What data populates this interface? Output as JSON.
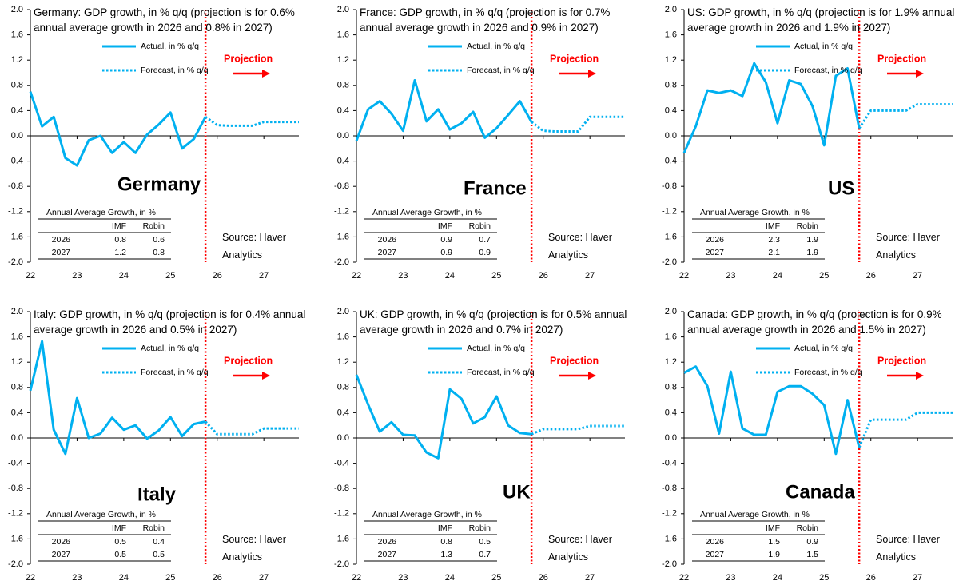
{
  "chart_data": [
    {
      "type": "line",
      "title": "Germany: GDP growth, in % q/q (projection is for 0.6% annual average growth in 2026 and 0.8% in 2027)",
      "label": "Germany",
      "x": [
        22,
        22.25,
        22.5,
        22.75,
        23,
        23.25,
        23.5,
        23.75,
        24,
        24.25,
        24.5,
        24.75,
        25,
        25.25,
        25.5,
        25.75,
        26,
        26.25,
        26.5,
        26.75,
        27,
        27.25,
        27.5,
        27.75
      ],
      "series": [
        {
          "name": "Actual, in % q/q",
          "color": "#00b0f0",
          "style": "solid",
          "values": [
            0.7,
            0.15,
            0.3,
            -0.35,
            -0.47,
            -0.07,
            0.0,
            -0.27,
            -0.1,
            -0.27,
            0.02,
            0.18,
            0.37,
            -0.2,
            -0.05,
            0.3,
            null,
            null,
            null,
            null,
            null,
            null,
            null,
            null
          ]
        },
        {
          "name": "Forecast, in % q/q",
          "color": "#00b0f0",
          "style": "dotted",
          "values": [
            null,
            null,
            null,
            null,
            null,
            null,
            null,
            null,
            null,
            null,
            null,
            null,
            null,
            null,
            null,
            0.3,
            0.17,
            0.16,
            0.16,
            0.16,
            0.22,
            0.22,
            0.22,
            0.22
          ]
        }
      ],
      "xlim": [
        22,
        27.75
      ],
      "xticks": [
        22,
        23,
        24,
        25,
        26,
        27
      ],
      "ylim": [
        -2,
        2
      ],
      "yticks": [
        {
          "value": 2,
          "label": "2.0"
        },
        1.6,
        1.2,
        0.8,
        0.4,
        {
          "value": 0,
          "label": "0.0"
        },
        -0.4,
        -0.8,
        -1.2,
        -1.6,
        {
          "value": -2,
          "label": "-2.0"
        }
      ],
      "annotation": "Projection",
      "annotation_color": "#ff0000",
      "table": {
        "title": "Annual Average Growth, in %",
        "columns": [
          "IMF",
          "Robin"
        ],
        "rows": [
          {
            "label": "2026",
            "values": [
              0.8,
              0.6
            ]
          },
          {
            "label": "2027",
            "values": [
              1.2,
              0.8
            ]
          }
        ]
      },
      "source": "Source: Haver Analytics"
    },
    {
      "type": "line",
      "title": "France: GDP growth, in % q/q (projection is for 0.7% annual average growth in 2026 and 0.9% in 2027)",
      "label": "France",
      "x": [
        22,
        22.25,
        22.5,
        22.75,
        23,
        23.25,
        23.5,
        23.75,
        24,
        24.25,
        24.5,
        24.75,
        25,
        25.25,
        25.5,
        25.75,
        26,
        26.25,
        26.5,
        26.75,
        27,
        27.25,
        27.5,
        27.75
      ],
      "series": [
        {
          "name": "Actual, in % q/q",
          "color": "#00b0f0",
          "style": "solid",
          "values": [
            -0.08,
            0.42,
            0.55,
            0.35,
            0.08,
            0.88,
            0.23,
            0.42,
            0.1,
            0.2,
            0.38,
            -0.03,
            0.12,
            0.33,
            0.55,
            0.22,
            null,
            null,
            null,
            null,
            null,
            null,
            null,
            null
          ]
        },
        {
          "name": "Forecast, in % q/q",
          "color": "#00b0f0",
          "style": "dotted",
          "values": [
            null,
            null,
            null,
            null,
            null,
            null,
            null,
            null,
            null,
            null,
            null,
            null,
            null,
            null,
            null,
            0.22,
            0.08,
            0.07,
            0.07,
            0.07,
            0.3,
            0.3,
            0.3,
            0.3
          ]
        }
      ],
      "xlim": [
        22,
        27.75
      ],
      "xticks": [
        22,
        23,
        24,
        25,
        26,
        27
      ],
      "ylim": [
        -2,
        2
      ],
      "yticks": [
        {
          "value": 2,
          "label": "2.0"
        },
        1.6,
        1.2,
        0.8,
        0.4,
        {
          "value": 0,
          "label": "0.0"
        },
        -0.4,
        -0.8,
        -1.2,
        -1.6,
        {
          "value": -2,
          "label": "-2.0"
        }
      ],
      "annotation": "Projection",
      "annotation_color": "#ff0000",
      "table": {
        "title": "Annual Average Growth, in %",
        "columns": [
          "IMF",
          "Robin"
        ],
        "rows": [
          {
            "label": "2026",
            "values": [
              0.9,
              0.7
            ]
          },
          {
            "label": "2027",
            "values": [
              0.9,
              0.9
            ]
          }
        ]
      },
      "source": "Source: Haver Analytics"
    },
    {
      "type": "line",
      "title": "US: GDP growth, in % q/q (projection is for 1.9% annual average growth in 2026 and 1.9% in 2027)",
      "label": "US",
      "x": [
        22,
        22.25,
        22.5,
        22.75,
        23,
        23.25,
        23.5,
        23.75,
        24,
        24.25,
        24.5,
        24.75,
        25,
        25.25,
        25.5,
        25.75,
        26,
        26.25,
        26.5,
        26.75,
        27,
        27.25,
        27.5,
        27.75
      ],
      "series": [
        {
          "name": "Actual, in % q/q",
          "color": "#00b0f0",
          "style": "solid",
          "values": [
            -0.27,
            0.15,
            0.72,
            0.68,
            0.72,
            0.63,
            1.15,
            0.85,
            0.2,
            0.88,
            0.82,
            0.47,
            -0.15,
            0.95,
            1.07,
            0.12,
            null,
            null,
            null,
            null,
            null,
            null,
            null,
            null
          ]
        },
        {
          "name": "Forecast, in % q/q",
          "color": "#00b0f0",
          "style": "dotted",
          "values": [
            null,
            null,
            null,
            null,
            null,
            null,
            null,
            null,
            null,
            null,
            null,
            null,
            null,
            null,
            null,
            0.12,
            0.4,
            0.4,
            0.4,
            0.4,
            0.5,
            0.5,
            0.5,
            0.5
          ]
        }
      ],
      "xlim": [
        22,
        27.75
      ],
      "xticks": [
        22,
        23,
        24,
        25,
        26,
        27
      ],
      "ylim": [
        -2,
        2
      ],
      "yticks": [
        {
          "value": 2,
          "label": "2.0"
        },
        1.6,
        1.2,
        0.8,
        0.4,
        {
          "value": 0,
          "label": "0.0"
        },
        -0.4,
        -0.8,
        -1.2,
        -1.6,
        {
          "value": -2,
          "label": "-2.0"
        }
      ],
      "annotation": "Projection",
      "annotation_color": "#ff0000",
      "table": {
        "title": "Annual Average Growth, in %",
        "columns": [
          "IMF",
          "Robin"
        ],
        "rows": [
          {
            "label": "2026",
            "values": [
              2.3,
              1.9
            ]
          },
          {
            "label": "2027",
            "values": [
              2.1,
              1.9
            ]
          }
        ]
      },
      "source": "Source: Haver Analytics"
    },
    {
      "type": "line",
      "title": "Italy: GDP growth, in % q/q (projection is for 0.4% annual average growth in 2026 and 0.5% in 2027)",
      "label": "Italy",
      "x": [
        22,
        22.25,
        22.5,
        22.75,
        23,
        23.25,
        23.5,
        23.75,
        24,
        24.25,
        24.5,
        24.75,
        25,
        25.25,
        25.5,
        25.75,
        26,
        26.25,
        26.5,
        26.75,
        27,
        27.25,
        27.5,
        27.75
      ],
      "series": [
        {
          "name": "Actual, in % q/q",
          "color": "#00b0f0",
          "style": "solid",
          "values": [
            0.75,
            1.53,
            0.13,
            -0.25,
            0.63,
            0.0,
            0.07,
            0.32,
            0.13,
            0.2,
            -0.01,
            0.12,
            0.33,
            0.03,
            0.22,
            0.26,
            null,
            null,
            null,
            null,
            null,
            null,
            null,
            null
          ]
        },
        {
          "name": "Forecast, in % q/q",
          "color": "#00b0f0",
          "style": "dotted",
          "values": [
            null,
            null,
            null,
            null,
            null,
            null,
            null,
            null,
            null,
            null,
            null,
            null,
            null,
            null,
            null,
            0.26,
            0.06,
            0.06,
            0.06,
            0.06,
            0.15,
            0.15,
            0.15,
            0.15
          ]
        }
      ],
      "xlim": [
        22,
        27.75
      ],
      "xticks": [
        22,
        23,
        24,
        25,
        26,
        27
      ],
      "ylim": [
        -2,
        2
      ],
      "yticks": [
        {
          "value": 2,
          "label": "2.0"
        },
        1.6,
        1.2,
        0.8,
        0.4,
        {
          "value": 0,
          "label": "0.0"
        },
        -0.4,
        -0.8,
        -1.2,
        -1.6,
        {
          "value": -2,
          "label": "-2.0"
        }
      ],
      "annotation": "Projection",
      "annotation_color": "#ff0000",
      "table": {
        "title": "Annual Average Growth, in %",
        "columns": [
          "IMF",
          "Robin"
        ],
        "rows": [
          {
            "label": "2026",
            "values": [
              0.5,
              0.4
            ]
          },
          {
            "label": "2027",
            "values": [
              0.5,
              0.5
            ]
          }
        ]
      },
      "source": "Source: Haver Analytics"
    },
    {
      "type": "line",
      "title": "UK: GDP growth, in % q/q (projection is for 0.5% annual average growth in 2026 and 0.7% in 2027)",
      "label": "UK",
      "x": [
        22,
        22.25,
        22.5,
        22.75,
        23,
        23.25,
        23.5,
        23.75,
        24,
        24.25,
        24.5,
        24.75,
        25,
        25.25,
        25.5,
        25.75,
        26,
        26.25,
        26.5,
        26.75,
        27,
        27.25,
        27.5,
        27.75
      ],
      "series": [
        {
          "name": "Actual, in % q/q",
          "color": "#00b0f0",
          "style": "solid",
          "values": [
            1.0,
            0.53,
            0.1,
            0.25,
            0.05,
            0.04,
            -0.23,
            -0.32,
            0.77,
            0.62,
            0.23,
            0.33,
            0.66,
            0.2,
            0.08,
            0.06,
            null,
            null,
            null,
            null,
            null,
            null,
            null,
            null
          ]
        },
        {
          "name": "Forecast, in % q/q",
          "color": "#00b0f0",
          "style": "dotted",
          "values": [
            null,
            null,
            null,
            null,
            null,
            null,
            null,
            null,
            null,
            null,
            null,
            null,
            null,
            null,
            null,
            0.06,
            0.14,
            0.14,
            0.14,
            0.14,
            0.19,
            0.19,
            0.19,
            0.19
          ]
        }
      ],
      "xlim": [
        22,
        27.75
      ],
      "xticks": [
        22,
        23,
        24,
        25,
        26,
        27
      ],
      "ylim": [
        -2,
        2
      ],
      "yticks": [
        {
          "value": 2,
          "label": "2.0"
        },
        1.6,
        1.2,
        0.8,
        0.4,
        {
          "value": 0,
          "label": "0.0"
        },
        -0.4,
        -0.8,
        -1.2,
        -1.6,
        {
          "value": -2,
          "label": "-2.0"
        }
      ],
      "annotation": "Projection",
      "annotation_color": "#ff0000",
      "table": {
        "title": "Annual Average Growth, in %",
        "columns": [
          "IMF",
          "Robin"
        ],
        "rows": [
          {
            "label": "2026",
            "values": [
              0.8,
              0.5
            ]
          },
          {
            "label": "2027",
            "values": [
              1.3,
              0.7
            ]
          }
        ]
      },
      "source": "Source: Haver Analytics"
    },
    {
      "type": "line",
      "title": "Canada: GDP growth, in % q/q (projection is for 0.9% annual average growth in 2026 and 1.5% in 2027)",
      "label": "Canada",
      "x": [
        22,
        22.25,
        22.5,
        22.75,
        23,
        23.25,
        23.5,
        23.75,
        24,
        24.25,
        24.5,
        24.75,
        25,
        25.25,
        25.5,
        25.75,
        26,
        26.25,
        26.5,
        26.75,
        27,
        27.25,
        27.5,
        27.75
      ],
      "series": [
        {
          "name": "Actual, in % q/q",
          "color": "#00b0f0",
          "style": "solid",
          "values": [
            1.03,
            1.13,
            0.82,
            0.07,
            1.05,
            0.15,
            0.05,
            0.05,
            0.73,
            0.82,
            0.82,
            0.7,
            0.52,
            -0.25,
            0.6,
            -0.15,
            null,
            null,
            null,
            null,
            null,
            null,
            null,
            null
          ]
        },
        {
          "name": "Forecast, in % q/q",
          "color": "#00b0f0",
          "style": "dotted",
          "values": [
            null,
            null,
            null,
            null,
            null,
            null,
            null,
            null,
            null,
            null,
            null,
            null,
            null,
            null,
            null,
            -0.15,
            0.29,
            0.29,
            0.29,
            0.29,
            0.4,
            0.4,
            0.4,
            0.4
          ]
        }
      ],
      "xlim": [
        22,
        27.75
      ],
      "xticks": [
        22,
        23,
        24,
        25,
        26,
        27
      ],
      "ylim": [
        -2,
        2
      ],
      "yticks": [
        {
          "value": 2,
          "label": "2.0"
        },
        1.6,
        1.2,
        0.8,
        0.4,
        {
          "value": 0,
          "label": "0.0"
        },
        -0.4,
        -0.8,
        -1.2,
        -1.6,
        {
          "value": -2,
          "label": "-2.0"
        }
      ],
      "annotation": "Projection",
      "annotation_color": "#ff0000",
      "table": {
        "title": "Annual Average Growth, in %",
        "columns": [
          "IMF",
          "Robin"
        ],
        "rows": [
          {
            "label": "2026",
            "values": [
              1.5,
              0.9
            ]
          },
          {
            "label": "2027",
            "values": [
              1.9,
              1.5
            ]
          }
        ]
      },
      "source": "Source: Haver Analytics"
    }
  ]
}
